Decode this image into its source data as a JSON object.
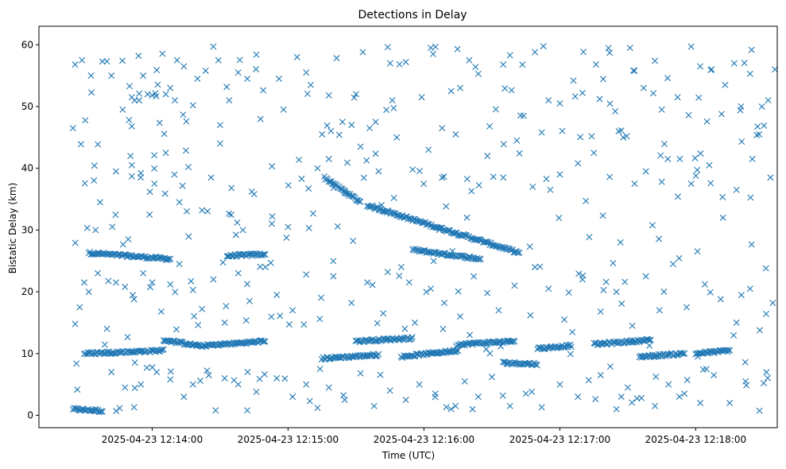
{
  "chart_data": {
    "type": "scatter",
    "title": "Detections in Delay",
    "xlabel": "Time (UTC)",
    "ylabel": "Bistatic Delay (km)",
    "marker": "x",
    "color": "#1f77b4",
    "grid": false,
    "xlim": [
      "2025-04-23 12:13:10",
      "2025-04-23 12:18:36"
    ],
    "ylim": [
      -2,
      63
    ],
    "xticks": [
      "2025-04-23 12:14:00",
      "2025-04-23 12:15:00",
      "2025-04-23 12:16:00",
      "2025-04-23 12:17:00",
      "2025-04-23 12:18:00"
    ],
    "yticks": [
      0,
      10,
      20,
      30,
      40,
      50,
      60
    ],
    "tracks": [
      {
        "t_start": "2025-04-23 12:13:25",
        "t_end": "2025-04-23 12:13:38",
        "delay_start": 1.0,
        "delay_end": 0.7
      },
      {
        "t_start": "2025-04-23 12:13:32",
        "t_end": "2025-04-23 12:14:08",
        "delay_start": 26.3,
        "delay_end": 25.3
      },
      {
        "t_start": "2025-04-23 12:14:33",
        "t_end": "2025-04-23 12:14:50",
        "delay_start": 25.8,
        "delay_end": 26.1
      },
      {
        "t_start": "2025-04-23 12:15:16",
        "t_end": "2025-04-23 12:15:32",
        "delay_start": 38.5,
        "delay_end": 34.5
      },
      {
        "t_start": "2025-04-23 12:15:35",
        "t_end": "2025-04-23 12:16:42",
        "delay_start": 34.0,
        "delay_end": 26.3
      },
      {
        "t_start": "2025-04-23 12:15:55",
        "t_end": "2025-04-23 12:16:25",
        "delay_start": 26.8,
        "delay_end": 25.3
      },
      {
        "t_start": "2025-04-23 12:13:30",
        "t_end": "2025-04-23 12:14:05",
        "delay_start": 10.0,
        "delay_end": 10.5
      },
      {
        "t_start": "2025-04-23 12:14:05",
        "t_end": "2025-04-23 12:14:20",
        "delay_start": 12.2,
        "delay_end": 11.3
      },
      {
        "t_start": "2025-04-23 12:14:20",
        "t_end": "2025-04-23 12:14:50",
        "delay_start": 11.2,
        "delay_end": 12.0
      },
      {
        "t_start": "2025-04-23 12:15:15",
        "t_end": "2025-04-23 12:15:40",
        "delay_start": 9.2,
        "delay_end": 9.8
      },
      {
        "t_start": "2025-04-23 12:15:30",
        "t_end": "2025-04-23 12:15:55",
        "delay_start": 12.0,
        "delay_end": 12.5
      },
      {
        "t_start": "2025-04-23 12:15:50",
        "t_end": "2025-04-23 12:16:15",
        "delay_start": 9.5,
        "delay_end": 10.5
      },
      {
        "t_start": "2025-04-23 12:16:15",
        "t_end": "2025-04-23 12:16:40",
        "delay_start": 11.5,
        "delay_end": 12.0
      },
      {
        "t_start": "2025-04-23 12:16:35",
        "t_end": "2025-04-23 12:16:50",
        "delay_start": 8.5,
        "delay_end": 8.3
      },
      {
        "t_start": "2025-04-23 12:16:50",
        "t_end": "2025-04-23 12:17:05",
        "delay_start": 10.8,
        "delay_end": 11.3
      },
      {
        "t_start": "2025-04-23 12:17:15",
        "t_end": "2025-04-23 12:17:40",
        "delay_start": 11.5,
        "delay_end": 12.2
      },
      {
        "t_start": "2025-04-23 12:17:35",
        "t_end": "2025-04-23 12:17:55",
        "delay_start": 9.5,
        "delay_end": 10.0
      },
      {
        "t_start": "2025-04-23 12:18:00",
        "t_end": "2025-04-23 12:18:15",
        "delay_start": 10.0,
        "delay_end": 10.5
      }
    ],
    "scatter_points": [
      [
        "2025-04-23 12:13:25",
        46.5
      ],
      [
        "2025-04-23 12:13:26",
        56.8
      ],
      [
        "2025-04-23 12:13:29",
        57.5
      ],
      [
        "2025-04-23 12:13:33",
        55.0
      ],
      [
        "2025-04-23 12:13:38",
        57.3
      ],
      [
        "2025-04-23 12:13:40",
        57.3
      ],
      [
        "2025-04-23 12:13:42",
        55.0
      ],
      [
        "2025-04-23 12:13:47",
        49.5
      ],
      [
        "2025-04-23 12:13:50",
        53.3
      ],
      [
        "2025-04-23 12:13:54",
        58.2
      ],
      [
        "2025-04-23 12:13:56",
        55.0
      ],
      [
        "2025-04-23 12:13:58",
        52.0
      ],
      [
        "2025-04-23 12:14:00",
        51.8
      ],
      [
        "2025-04-23 12:14:02",
        55.9
      ],
      [
        "2025-04-23 12:14:06",
        52.0
      ],
      [
        "2025-04-23 12:14:08",
        53.0
      ],
      [
        "2025-04-23 12:14:10",
        51.0
      ],
      [
        "2025-04-23 12:14:11",
        57.5
      ],
      [
        "2025-04-23 12:14:14",
        56.5
      ],
      [
        "2025-04-23 12:14:18",
        50.2
      ],
      [
        "2025-04-23 12:14:20",
        54.5
      ],
      [
        "2025-04-23 12:14:27",
        59.7
      ],
      [
        "2025-04-23 12:14:30",
        47.0
      ],
      [
        "2025-04-23 12:14:34",
        51.0
      ],
      [
        "2025-04-23 12:14:38",
        55.5
      ],
      [
        "2025-04-23 12:14:42",
        54.5
      ],
      [
        "2025-04-23 12:14:46",
        58.4
      ],
      [
        "2025-04-23 12:14:56",
        54.5
      ],
      [
        "2025-04-23 12:14:58",
        49.5
      ],
      [
        "2025-04-23 12:15:04",
        58.0
      ],
      [
        "2025-04-23 12:15:08",
        55.5
      ],
      [
        "2025-04-23 12:15:10",
        53.5
      ],
      [
        "2025-04-23 12:15:15",
        45.5
      ],
      [
        "2025-04-23 12:15:18",
        51.8
      ],
      [
        "2025-04-23 12:15:24",
        47.5
      ],
      [
        "2025-04-23 12:15:30",
        52.0
      ],
      [
        "2025-04-23 12:15:33",
        58.8
      ],
      [
        "2025-04-23 12:15:36",
        46.5
      ],
      [
        "2025-04-23 12:15:46",
        51.0
      ],
      [
        "2025-04-23 12:15:52",
        57.2
      ],
      [
        "2025-04-23 12:15:59",
        51.5
      ],
      [
        "2025-04-23 12:16:03",
        59.5
      ],
      [
        "2025-04-23 12:16:08",
        46.5
      ],
      [
        "2025-04-23 12:16:12",
        52.5
      ],
      [
        "2025-04-23 12:16:16",
        53.0
      ],
      [
        "2025-04-23 12:16:20",
        57.5
      ],
      [
        "2025-04-23 12:16:24",
        55.3
      ],
      [
        "2025-04-23 12:16:29",
        46.8
      ],
      [
        "2025-04-23 12:16:35",
        56.8
      ],
      [
        "2025-04-23 12:16:38",
        58.3
      ],
      [
        "2025-04-23 12:16:44",
        48.5
      ],
      [
        "2025-04-23 12:16:49",
        58.8
      ],
      [
        "2025-04-23 12:16:55",
        51.0
      ],
      [
        "2025-04-23 12:17:00",
        50.5
      ],
      [
        "2025-04-23 12:17:06",
        54.2
      ],
      [
        "2025-04-23 12:17:10",
        52.2
      ],
      [
        "2025-04-23 12:17:16",
        56.8
      ],
      [
        "2025-04-23 12:17:22",
        58.7
      ],
      [
        "2025-04-23 12:17:26",
        46.0
      ],
      [
        "2025-04-23 12:17:31",
        59.5
      ],
      [
        "2025-04-23 12:17:37",
        53.0
      ],
      [
        "2025-04-23 12:17:45",
        49.5
      ],
      [
        "2025-04-23 12:17:52",
        51.5
      ],
      [
        "2025-04-23 12:17:58",
        59.7
      ],
      [
        "2025-04-23 12:18:02",
        56.5
      ],
      [
        "2025-04-23 12:18:07",
        56.0
      ],
      [
        "2025-04-23 12:18:13",
        53.5
      ],
      [
        "2025-04-23 12:18:17",
        57.0
      ],
      [
        "2025-04-23 12:18:20",
        50.0
      ],
      [
        "2025-04-23 12:18:24",
        55.3
      ],
      [
        "2025-04-23 12:18:28",
        45.5
      ],
      [
        "2025-04-23 12:18:32",
        51.0
      ],
      [
        "2025-04-23 12:18:35",
        56.0
      ],
      [
        "2025-04-23 12:13:35",
        30.0
      ],
      [
        "2025-04-23 12:13:37",
        34.5
      ],
      [
        "2025-04-23 12:13:44",
        39.5
      ],
      [
        "2025-04-23 12:13:51",
        40.5
      ],
      [
        "2025-04-23 12:13:55",
        39.2
      ],
      [
        "2025-04-23 12:13:59",
        36.2
      ],
      [
        "2025-04-23 12:14:01",
        37.5
      ],
      [
        "2025-04-23 12:14:06",
        42.5
      ],
      [
        "2025-04-23 12:14:12",
        34.5
      ],
      [
        "2025-04-23 12:14:16",
        40.2
      ],
      [
        "2025-04-23 12:14:22",
        33.2
      ],
      [
        "2025-04-23 12:14:26",
        38.5
      ],
      [
        "2025-04-23 12:14:30",
        44.0
      ],
      [
        "2025-04-23 12:14:35",
        36.8
      ],
      [
        "2025-04-23 12:14:40",
        30.0
      ],
      [
        "2025-04-23 12:14:45",
        35.8
      ],
      [
        "2025-04-23 12:14:53",
        32.2
      ],
      [
        "2025-04-23 12:15:00",
        30.5
      ],
      [
        "2025-04-23 12:15:06",
        38.3
      ],
      [
        "2025-04-23 12:15:13",
        40.0
      ],
      [
        "2025-04-23 12:15:18",
        41.5
      ],
      [
        "2025-04-23 12:15:25",
        36.0
      ],
      [
        "2025-04-23 12:15:32",
        43.5
      ],
      [
        "2025-04-23 12:15:40",
        39.5
      ],
      [
        "2025-04-23 12:15:48",
        45.0
      ],
      [
        "2025-04-23 12:15:55",
        39.8
      ],
      [
        "2025-04-23 12:16:02",
        43.0
      ],
      [
        "2025-04-23 12:16:08",
        38.5
      ],
      [
        "2025-04-23 12:16:14",
        45.5
      ],
      [
        "2025-04-23 12:16:21",
        36.3
      ],
      [
        "2025-04-23 12:16:28",
        42.0
      ],
      [
        "2025-04-23 12:16:35",
        38.5
      ],
      [
        "2025-04-23 12:16:41",
        44.5
      ],
      [
        "2025-04-23 12:16:48",
        37.0
      ],
      [
        "2025-04-23 12:16:52",
        45.8
      ],
      [
        "2025-04-23 12:17:00",
        39.0
      ],
      [
        "2025-04-23 12:17:08",
        40.8
      ],
      [
        "2025-04-23 12:17:15",
        42.5
      ],
      [
        "2025-04-23 12:17:22",
        38.6
      ],
      [
        "2025-04-23 12:17:28",
        45.0
      ],
      [
        "2025-04-23 12:17:33",
        37.5
      ],
      [
        "2025-04-23 12:17:38",
        39.5
      ],
      [
        "2025-04-23 12:17:45",
        37.8
      ],
      [
        "2025-04-23 12:17:53",
        41.5
      ],
      [
        "2025-04-23 12:17:58",
        37.5
      ],
      [
        "2025-04-23 12:18:06",
        40.5
      ],
      [
        "2025-04-23 12:18:12",
        32.0
      ],
      [
        "2025-04-23 12:18:18",
        36.5
      ],
      [
        "2025-04-23 12:18:25",
        41.5
      ],
      [
        "2025-04-23 12:18:33",
        38.5
      ],
      [
        "2025-04-23 12:13:26",
        14.8
      ],
      [
        "2025-04-23 12:13:28",
        17.5
      ],
      [
        "2025-04-23 12:13:30",
        21.5
      ],
      [
        "2025-04-23 12:13:32",
        20.0
      ],
      [
        "2025-04-23 12:13:36",
        23.0
      ],
      [
        "2025-04-23 12:13:40",
        14.0
      ],
      [
        "2025-04-23 12:13:44",
        21.5
      ],
      [
        "2025-04-23 12:13:48",
        20.8
      ],
      [
        "2025-04-23 12:13:52",
        18.8
      ],
      [
        "2025-04-23 12:13:56",
        23.0
      ],
      [
        "2025-04-23 12:14:00",
        21.5
      ],
      [
        "2025-04-23 12:14:04",
        16.8
      ],
      [
        "2025-04-23 12:14:08",
        21.2
      ],
      [
        "2025-04-23 12:14:12",
        24.5
      ],
      [
        "2025-04-23 12:14:18",
        20.3
      ],
      [
        "2025-04-23 12:14:22",
        17.2
      ],
      [
        "2025-04-23 12:14:27",
        22.0
      ],
      [
        "2025-04-23 12:14:32",
        15.0
      ],
      [
        "2025-04-23 12:14:38",
        23.0
      ],
      [
        "2025-04-23 12:14:43",
        18.5
      ],
      [
        "2025-04-23 12:14:50",
        24.0
      ],
      [
        "2025-04-23 12:14:55",
        19.5
      ],
      [
        "2025-04-23 12:15:02",
        17.0
      ],
      [
        "2025-04-23 12:15:08",
        22.8
      ],
      [
        "2025-04-23 12:15:14",
        15.6
      ],
      [
        "2025-04-23 12:15:20",
        22.5
      ],
      [
        "2025-04-23 12:15:28",
        18.2
      ],
      [
        "2025-04-23 12:15:35",
        21.5
      ],
      [
        "2025-04-23 12:15:42",
        16.5
      ],
      [
        "2025-04-23 12:15:50",
        24.0
      ],
      [
        "2025-04-23 12:15:56",
        15.0
      ],
      [
        "2025-04-23 12:16:03",
        20.5
      ],
      [
        "2025-04-23 12:16:09",
        18.2
      ],
      [
        "2025-04-23 12:16:16",
        16.0
      ],
      [
        "2025-04-23 12:16:22",
        22.5
      ],
      [
        "2025-04-23 12:16:28",
        19.8
      ],
      [
        "2025-04-23 12:16:33",
        17.0
      ],
      [
        "2025-04-23 12:16:40",
        21.0
      ],
      [
        "2025-04-23 12:16:47",
        16.2
      ],
      [
        "2025-04-23 12:16:55",
        20.5
      ],
      [
        "2025-04-23 12:17:02",
        15.5
      ],
      [
        "2025-04-23 12:17:10",
        22.0
      ],
      [
        "2025-04-23 12:17:18",
        16.8
      ],
      [
        "2025-04-23 12:17:25",
        20.0
      ],
      [
        "2025-04-23 12:17:32",
        14.5
      ],
      [
        "2025-04-23 12:17:38",
        22.5
      ],
      [
        "2025-04-23 12:17:44",
        17.0
      ],
      [
        "2025-04-23 12:17:50",
        24.5
      ],
      [
        "2025-04-23 12:17:56",
        17.5
      ],
      [
        "2025-04-23 12:18:04",
        21.2
      ],
      [
        "2025-04-23 12:18:11",
        18.8
      ],
      [
        "2025-04-23 12:18:18",
        15.0
      ],
      [
        "2025-04-23 12:18:24",
        20.5
      ],
      [
        "2025-04-23 12:18:31",
        23.8
      ],
      [
        "2025-04-23 12:18:34",
        18.2
      ],
      [
        "2025-04-23 12:13:35",
        1.0
      ],
      [
        "2025-04-23 12:13:42",
        7.0
      ],
      [
        "2025-04-23 12:13:48",
        4.5
      ],
      [
        "2025-04-23 12:13:52",
        1.3
      ],
      [
        "2025-04-23 12:13:55",
        5.0
      ],
      [
        "2025-04-23 12:14:02",
        7.0
      ],
      [
        "2025-04-23 12:14:08",
        5.8
      ],
      [
        "2025-04-23 12:14:14",
        3.0
      ],
      [
        "2025-04-23 12:14:18",
        5.0
      ],
      [
        "2025-04-23 12:14:25",
        6.5
      ],
      [
        "2025-04-23 12:14:28",
        0.8
      ],
      [
        "2025-04-23 12:14:32",
        6.0
      ],
      [
        "2025-04-23 12:14:38",
        5.0
      ],
      [
        "2025-04-23 12:14:42",
        0.8
      ],
      [
        "2025-04-23 12:14:46",
        3.8
      ],
      [
        "2025-04-23 12:14:55",
        6.0
      ],
      [
        "2025-04-23 12:15:02",
        3.0
      ],
      [
        "2025-04-23 12:15:08",
        5.0
      ],
      [
        "2025-04-23 12:15:13",
        1.2
      ],
      [
        "2025-04-23 12:15:18",
        4.5
      ],
      [
        "2025-04-23 12:15:25",
        2.5
      ],
      [
        "2025-04-23 12:15:32",
        6.8
      ],
      [
        "2025-04-23 12:15:38",
        1.5
      ],
      [
        "2025-04-23 12:15:45",
        4.0
      ],
      [
        "2025-04-23 12:15:52",
        2.5
      ],
      [
        "2025-04-23 12:15:58",
        5.0
      ],
      [
        "2025-04-23 12:16:05",
        3.5
      ],
      [
        "2025-04-23 12:16:12",
        1.0
      ],
      [
        "2025-04-23 12:16:18",
        5.5
      ],
      [
        "2025-04-23 12:16:24",
        3.0
      ],
      [
        "2025-04-23 12:16:30",
        6.2
      ],
      [
        "2025-04-23 12:16:38",
        1.5
      ],
      [
        "2025-04-23 12:16:45",
        3.5
      ],
      [
        "2025-04-23 12:16:52",
        1.3
      ],
      [
        "2025-04-23 12:17:00",
        5.0
      ],
      [
        "2025-04-23 12:17:08",
        3.0
      ],
      [
        "2025-04-23 12:17:18",
        6.5
      ],
      [
        "2025-04-23 12:17:25",
        1.0
      ],
      [
        "2025-04-23 12:17:30",
        4.5
      ],
      [
        "2025-04-23 12:17:36",
        2.8
      ],
      [
        "2025-04-23 12:17:42",
        1.5
      ],
      [
        "2025-04-23 12:17:48",
        5.0
      ],
      [
        "2025-04-23 12:17:55",
        3.5
      ],
      [
        "2025-04-23 12:18:02",
        2.0
      ],
      [
        "2025-04-23 12:18:08",
        6.5
      ],
      [
        "2025-04-23 12:18:15",
        2.0
      ],
      [
        "2025-04-23 12:18:22",
        5.5
      ],
      [
        "2025-04-23 12:18:30",
        5.2
      ]
    ],
    "random_noise": {
      "t_range": [
        "2025-04-23 12:13:26",
        "2025-04-23 12:18:35"
      ],
      "delay_range": [
        0.5,
        59.8
      ],
      "count": 260
    }
  }
}
